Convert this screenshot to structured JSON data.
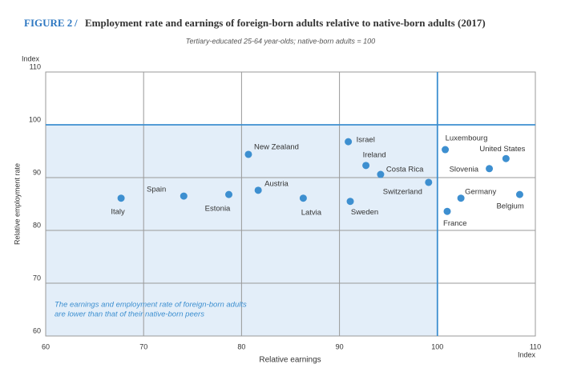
{
  "chart_data": {
    "type": "scatter",
    "figure_label": "FIGURE 2",
    "separator": "/",
    "title": "Employment rate and earnings of foreign-born adults relative to native-born adults (2017)",
    "subtitle": "Tertiary-educated 25-64 year-olds; native-born adults = 100",
    "x_label": "Relative earnings",
    "y_label": "Relative employment rate",
    "x_unit": "Index",
    "y_unit": "Index",
    "annotation": [
      "The earnings and employment rate of foreign-born adults",
      "are lower than that of their native-born peers"
    ],
    "color": "#3d8fd0",
    "grid": true,
    "reference_lines": {
      "x": 100,
      "y": 100
    },
    "xlim": [
      60,
      110
    ],
    "xticks": [
      60,
      70,
      80,
      90,
      100,
      110
    ],
    "ylim": [
      60,
      110
    ],
    "yticks": [
      60,
      70,
      80,
      90,
      100,
      110
    ],
    "labels": [
      "Italy",
      "Spain",
      "Estonia",
      "New Zealand",
      "Austria",
      "Latvia",
      "Israel",
      "Ireland",
      "Sweden",
      "Costa Rica",
      "Switzerland",
      "Luxembourg",
      "Slovenia",
      "United States",
      "Germany",
      "France",
      "Belgium"
    ],
    "x": [
      67.7,
      74.1,
      78.7,
      80.7,
      81.7,
      86.3,
      90.9,
      92.7,
      91.1,
      94.2,
      99.1,
      100.8,
      105.3,
      107.0,
      102.4,
      101.0,
      108.4
    ],
    "y": [
      86.1,
      86.5,
      86.8,
      94.4,
      87.6,
      86.1,
      96.8,
      92.3,
      85.5,
      90.6,
      89.1,
      95.3,
      91.7,
      93.6,
      86.1,
      83.6,
      86.8
    ]
  }
}
